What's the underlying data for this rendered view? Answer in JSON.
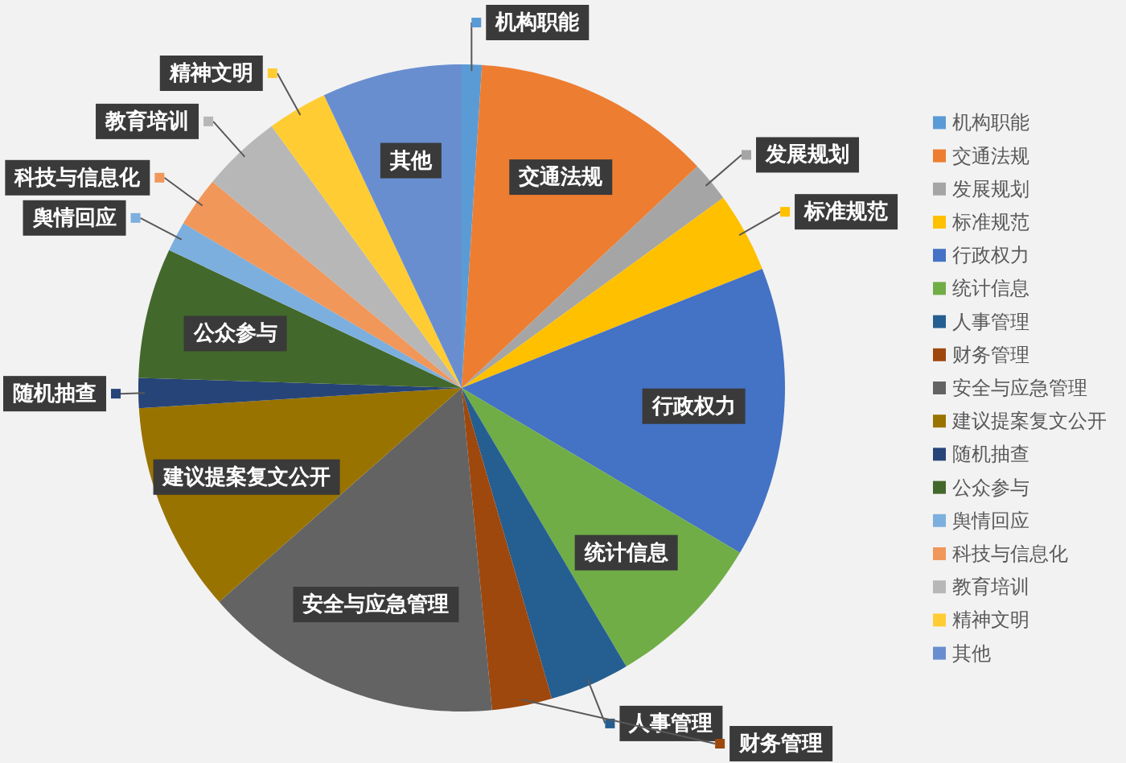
{
  "chart_data": {
    "type": "pie",
    "categories": [
      "机构职能",
      "交通法规",
      "发展规划",
      "标准规范",
      "行政权力",
      "统计信息",
      "人事管理",
      "财务管理",
      "安全与应急管理",
      "建议提案复文公开",
      "随机抽查",
      "公众参与",
      "舆情回应",
      "科技与信息化",
      "教育培训",
      "精神文明",
      "其他"
    ],
    "values": [
      1,
      12,
      2,
      4,
      14.5,
      8,
      4,
      3,
      15,
      10.5,
      1.5,
      6.5,
      1.5,
      2.5,
      4,
      3,
      7
    ],
    "colors": [
      "#5b9bd5",
      "#ed7d31",
      "#a5a5a5",
      "#ffc000",
      "#4472c4",
      "#70ad47",
      "#255e91",
      "#9e480e",
      "#636363",
      "#997300",
      "#264478",
      "#43682b",
      "#7cafdd",
      "#f1975a",
      "#b7b7b7",
      "#ffcd33",
      "#698ed0"
    ],
    "legend": "right"
  }
}
